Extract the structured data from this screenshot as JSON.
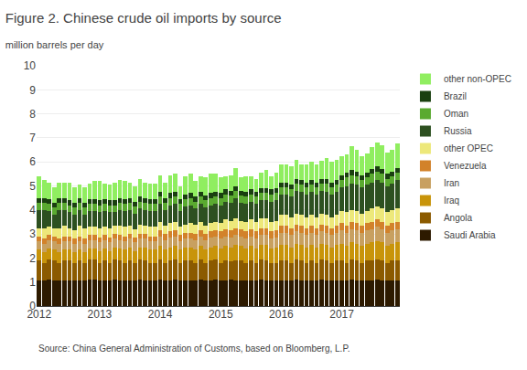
{
  "chart_data": {
    "type": "bar",
    "title": "Figure 2. Chinese crude oil imports by source",
    "subtitle": "million barrels per day",
    "annotations": [
      "Source: China General Administration of Customs, based on Bloomberg, L.P."
    ],
    "stacked": true,
    "grid": true,
    "legend": "right",
    "ylim": [
      0,
      10
    ],
    "yticks": [
      0,
      1,
      2,
      3,
      4,
      5,
      6,
      7,
      8,
      9,
      10
    ],
    "categories": [
      "2012",
      null,
      null,
      null,
      null,
      null,
      null,
      null,
      null,
      null,
      null,
      null,
      "2013",
      null,
      null,
      null,
      null,
      null,
      null,
      null,
      null,
      null,
      null,
      null,
      "2014",
      null,
      null,
      null,
      null,
      null,
      null,
      null,
      null,
      null,
      null,
      null,
      "2015",
      null,
      null,
      null,
      null,
      null,
      null,
      null,
      null,
      null,
      null,
      null,
      "2016",
      null,
      null,
      null,
      null,
      null,
      null,
      null,
      null,
      null,
      null,
      null,
      "2017",
      null,
      null,
      null,
      null,
      null,
      null,
      null,
      null,
      null,
      null,
      null
    ],
    "series": [
      {
        "name": "Saudi Arabia",
        "color": "#2d1a00",
        "values": [
          1.05,
          1.05,
          1.1,
          1.05,
          1.05,
          1.05,
          1.05,
          1.05,
          1.05,
          1.05,
          1.1,
          1.1,
          1.05,
          1.05,
          1.05,
          1.1,
          1.05,
          1.05,
          1.05,
          1.05,
          1.1,
          1.05,
          1.05,
          1.05,
          1.1,
          1.05,
          1.05,
          1.1,
          1.05,
          1.05,
          1.05,
          1.05,
          1.1,
          1.05,
          1.05,
          1.1,
          1.05,
          1.05,
          1.1,
          1.05,
          1.05,
          1.05,
          1.05,
          1.05,
          1.1,
          1.05,
          1.05,
          1.05,
          1.05,
          1.05,
          1.05,
          1.1,
          1.05,
          1.05,
          1.05,
          1.05,
          1.1,
          1.05,
          1.05,
          1.05,
          1.05,
          1.05,
          1.1,
          1.05,
          1.05,
          1.05,
          1.05,
          1.1,
          1.05,
          1.05,
          1.05,
          1.05
        ]
      },
      {
        "name": "Angola",
        "color": "#8B5A00",
        "values": [
          0.85,
          0.75,
          0.85,
          0.85,
          0.75,
          0.85,
          0.85,
          0.75,
          0.85,
          0.75,
          0.85,
          0.85,
          0.75,
          0.85,
          0.75,
          0.85,
          0.85,
          0.75,
          0.85,
          0.75,
          0.85,
          0.85,
          0.75,
          0.75,
          0.85,
          0.75,
          0.85,
          0.85,
          0.75,
          0.85,
          0.85,
          0.75,
          0.85,
          0.75,
          0.85,
          0.85,
          0.75,
          0.85,
          0.75,
          0.85,
          0.85,
          0.75,
          0.85,
          0.75,
          0.85,
          0.85,
          0.75,
          0.75,
          0.85,
          0.85,
          0.75,
          0.85,
          0.85,
          0.75,
          0.85,
          0.75,
          0.85,
          0.85,
          0.75,
          0.85,
          0.85,
          0.75,
          0.85,
          0.85,
          0.75,
          0.85,
          0.85,
          0.85,
          0.85,
          0.75,
          0.85,
          0.85
        ]
      },
      {
        "name": "Iraq",
        "color": "#C8940A",
        "values": [
          0.45,
          0.45,
          0.45,
          0.45,
          0.45,
          0.45,
          0.45,
          0.45,
          0.45,
          0.45,
          0.45,
          0.45,
          0.5,
          0.5,
          0.5,
          0.5,
          0.5,
          0.55,
          0.55,
          0.5,
          0.5,
          0.55,
          0.55,
          0.55,
          0.55,
          0.55,
          0.55,
          0.55,
          0.55,
          0.55,
          0.55,
          0.55,
          0.55,
          0.55,
          0.55,
          0.55,
          0.6,
          0.6,
          0.6,
          0.65,
          0.6,
          0.6,
          0.6,
          0.6,
          0.6,
          0.65,
          0.6,
          0.65,
          0.65,
          0.65,
          0.65,
          0.65,
          0.65,
          0.65,
          0.65,
          0.65,
          0.65,
          0.65,
          0.65,
          0.65,
          0.7,
          0.7,
          0.7,
          0.7,
          0.7,
          0.7,
          0.75,
          0.75,
          0.75,
          0.7,
          0.7,
          0.75
        ]
      },
      {
        "name": "Iran",
        "color": "#C8A060",
        "values": [
          0.35,
          0.35,
          0.35,
          0.35,
          0.35,
          0.35,
          0.35,
          0.35,
          0.35,
          0.35,
          0.35,
          0.35,
          0.35,
          0.35,
          0.35,
          0.35,
          0.35,
          0.35,
          0.35,
          0.35,
          0.35,
          0.35,
          0.35,
          0.35,
          0.4,
          0.4,
          0.4,
          0.4,
          0.35,
          0.35,
          0.35,
          0.4,
          0.4,
          0.4,
          0.4,
          0.4,
          0.4,
          0.4,
          0.4,
          0.4,
          0.4,
          0.4,
          0.4,
          0.4,
          0.4,
          0.4,
          0.4,
          0.4,
          0.5,
          0.5,
          0.5,
          0.5,
          0.5,
          0.5,
          0.5,
          0.5,
          0.5,
          0.5,
          0.5,
          0.5,
          0.55,
          0.55,
          0.55,
          0.55,
          0.55,
          0.55,
          0.55,
          0.6,
          0.55,
          0.55,
          0.55,
          0.55
        ]
      },
      {
        "name": "Venezuela",
        "color": "#D2822A",
        "values": [
          0.2,
          0.2,
          0.2,
          0.2,
          0.2,
          0.2,
          0.2,
          0.2,
          0.2,
          0.2,
          0.2,
          0.2,
          0.2,
          0.2,
          0.2,
          0.2,
          0.2,
          0.2,
          0.2,
          0.2,
          0.2,
          0.2,
          0.2,
          0.2,
          0.25,
          0.25,
          0.25,
          0.25,
          0.25,
          0.25,
          0.25,
          0.25,
          0.25,
          0.25,
          0.25,
          0.25,
          0.3,
          0.3,
          0.3,
          0.3,
          0.3,
          0.3,
          0.3,
          0.3,
          0.3,
          0.3,
          0.3,
          0.3,
          0.3,
          0.3,
          0.3,
          0.3,
          0.3,
          0.3,
          0.3,
          0.3,
          0.3,
          0.3,
          0.3,
          0.3,
          0.3,
          0.3,
          0.3,
          0.3,
          0.3,
          0.3,
          0.3,
          0.3,
          0.3,
          0.3,
          0.3,
          0.3
        ]
      },
      {
        "name": "other OPEC",
        "color": "#EDE87A",
        "values": [
          0.35,
          0.45,
          0.35,
          0.35,
          0.45,
          0.45,
          0.35,
          0.35,
          0.45,
          0.45,
          0.35,
          0.35,
          0.4,
          0.35,
          0.4,
          0.35,
          0.4,
          0.4,
          0.35,
          0.35,
          0.4,
          0.35,
          0.4,
          0.4,
          0.35,
          0.35,
          0.35,
          0.35,
          0.35,
          0.35,
          0.4,
          0.4,
          0.35,
          0.35,
          0.35,
          0.35,
          0.35,
          0.4,
          0.4,
          0.4,
          0.35,
          0.4,
          0.4,
          0.4,
          0.4,
          0.4,
          0.4,
          0.4,
          0.45,
          0.45,
          0.45,
          0.45,
          0.45,
          0.45,
          0.45,
          0.45,
          0.45,
          0.45,
          0.45,
          0.45,
          0.5,
          0.55,
          0.5,
          0.5,
          0.5,
          0.5,
          0.55,
          0.55,
          0.55,
          0.55,
          0.55,
          0.55
        ]
      },
      {
        "name": "Russia",
        "color": "#2d5020",
        "values": [
          0.75,
          0.75,
          0.65,
          0.55,
          0.75,
          0.65,
          0.65,
          0.65,
          0.65,
          0.55,
          0.65,
          0.65,
          0.65,
          0.65,
          0.65,
          0.55,
          0.65,
          0.65,
          0.65,
          0.65,
          0.65,
          0.65,
          0.65,
          0.65,
          0.75,
          0.65,
          0.75,
          0.75,
          0.65,
          0.75,
          0.75,
          0.65,
          0.75,
          0.75,
          0.75,
          0.75,
          0.75,
          0.75,
          0.75,
          0.85,
          0.75,
          0.75,
          0.75,
          0.75,
          0.75,
          0.75,
          0.85,
          0.85,
          0.85,
          0.85,
          0.85,
          0.95,
          0.95,
          0.95,
          0.95,
          0.95,
          0.95,
          0.95,
          0.95,
          0.95,
          1.0,
          1.1,
          1.1,
          1.1,
          1.1,
          1.1,
          1.1,
          1.1,
          1.1,
          1.1,
          1.1,
          1.2
        ]
      },
      {
        "name": "Oman",
        "color": "#5aaa30",
        "values": [
          0.3,
          0.3,
          0.3,
          0.3,
          0.3,
          0.3,
          0.3,
          0.3,
          0.3,
          0.3,
          0.3,
          0.3,
          0.3,
          0.3,
          0.3,
          0.3,
          0.3,
          0.3,
          0.3,
          0.3,
          0.3,
          0.3,
          0.3,
          0.3,
          0.3,
          0.3,
          0.3,
          0.3,
          0.3,
          0.3,
          0.3,
          0.3,
          0.3,
          0.3,
          0.3,
          0.3,
          0.3,
          0.3,
          0.3,
          0.3,
          0.3,
          0.3,
          0.3,
          0.3,
          0.3,
          0.3,
          0.3,
          0.3,
          0.3,
          0.3,
          0.3,
          0.3,
          0.3,
          0.3,
          0.3,
          0.3,
          0.3,
          0.35,
          0.3,
          0.3,
          0.3,
          0.35,
          0.35,
          0.35,
          0.3,
          0.3,
          0.35,
          0.35,
          0.35,
          0.3,
          0.3,
          0.3
        ]
      },
      {
        "name": "Brazil",
        "color": "#1a4010",
        "values": [
          0.2,
          0.2,
          0.2,
          0.2,
          0.2,
          0.2,
          0.2,
          0.2,
          0.2,
          0.2,
          0.2,
          0.2,
          0.2,
          0.2,
          0.2,
          0.2,
          0.2,
          0.2,
          0.2,
          0.2,
          0.2,
          0.2,
          0.2,
          0.2,
          0.2,
          0.2,
          0.2,
          0.2,
          0.2,
          0.2,
          0.2,
          0.2,
          0.2,
          0.2,
          0.2,
          0.2,
          0.2,
          0.2,
          0.2,
          0.2,
          0.2,
          0.2,
          0.2,
          0.2,
          0.2,
          0.2,
          0.2,
          0.2,
          0.2,
          0.2,
          0.2,
          0.2,
          0.2,
          0.2,
          0.2,
          0.2,
          0.2,
          0.2,
          0.2,
          0.2,
          0.2,
          0.2,
          0.2,
          0.2,
          0.2,
          0.2,
          0.2,
          0.2,
          0.2,
          0.2,
          0.2,
          0.2
        ]
      },
      {
        "name": "other non-OPEC",
        "color": "#90ee60",
        "values": [
          0.9,
          0.75,
          0.7,
          0.65,
          0.65,
          0.65,
          0.75,
          0.65,
          0.55,
          0.65,
          0.65,
          0.75,
          0.8,
          0.65,
          0.65,
          0.75,
          0.75,
          0.75,
          0.65,
          0.65,
          0.75,
          0.65,
          0.65,
          0.65,
          0.7,
          0.65,
          0.75,
          0.75,
          0.55,
          0.75,
          0.8,
          0.65,
          0.65,
          0.75,
          0.8,
          0.75,
          0.65,
          0.55,
          0.65,
          0.75,
          0.55,
          0.65,
          0.55,
          0.55,
          0.65,
          0.75,
          0.55,
          0.65,
          0.75,
          0.75,
          0.75,
          0.8,
          0.65,
          0.75,
          0.75,
          0.75,
          0.75,
          0.85,
          0.85,
          0.85,
          0.8,
          0.75,
          1.0,
          0.9,
          0.8,
          0.8,
          0.9,
          1.0,
          1.0,
          0.9,
          0.9,
          1.0
        ]
      }
    ]
  }
}
